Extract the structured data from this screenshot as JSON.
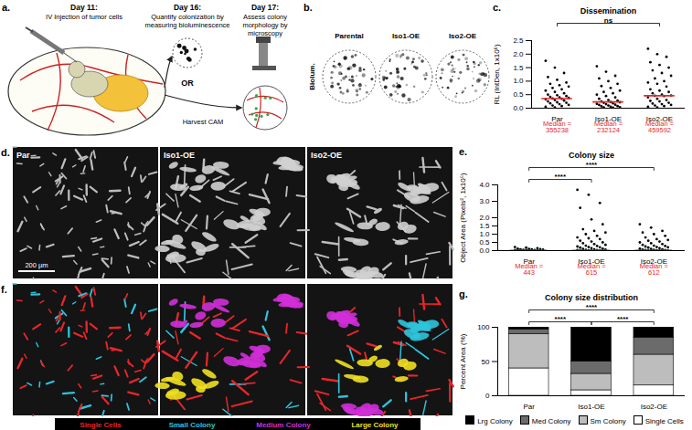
{
  "figure": {
    "a": {
      "label": "a.",
      "steps": [
        {
          "day": "Day 11:",
          "text": "IV Injection of tumor cells"
        },
        {
          "day": "Day 16:",
          "text": "Quantify colonization by measuring bioluminescence"
        },
        {
          "day": "Day 17:",
          "text": "Assess colony morphology by microscopy"
        }
      ],
      "choice": "OR",
      "arrow_label": "Harvest CAM"
    },
    "b": {
      "label": "b.",
      "row_label": "Biolum.",
      "columns": [
        "Parental",
        "Iso1-OE",
        "Iso2-OE"
      ]
    },
    "d": {
      "label": "d.",
      "columns": [
        "Par",
        "Iso1-OE",
        "Iso2-OE"
      ],
      "scale_bar": "200 µm"
    },
    "f": {
      "label": "f.",
      "legend": [
        {
          "name": "Single Cells",
          "color": "#e8262b"
        },
        {
          "name": "Small Colony",
          "color": "#2ec4dc"
        },
        {
          "name": "Medium Colony",
          "color": "#d02fd8"
        },
        {
          "name": "Large Colony",
          "color": "#f0e020"
        }
      ]
    }
  },
  "chart_data": [
    {
      "panel": "c.",
      "type": "scatter",
      "title": "Dissemination",
      "categories": [
        "Par",
        "Iso1-OE",
        "Iso2-OE"
      ],
      "y_label": "RL (IntDen, 1x10⁶)",
      "ylim": [
        0,
        2.5
      ],
      "yticks": [
        {
          "value": 0,
          "label": "0.0"
        },
        0.5,
        {
          "value": 1,
          "label": "1.0"
        },
        1.5,
        {
          "value": 2,
          "label": "2.0"
        },
        2.5
      ],
      "color": "#000000",
      "marker": "circle",
      "points": [
        [
          1.75,
          1.5,
          1.3,
          1.15,
          1.05,
          0.95,
          0.9,
          0.85,
          0.8,
          0.75,
          0.7,
          0.65,
          0.6,
          0.55,
          0.5,
          0.48,
          0.45,
          0.42,
          0.4,
          0.38,
          0.36,
          0.35,
          0.33,
          0.3,
          0.28,
          0.25,
          0.22,
          0.2,
          0.18,
          0.15,
          0.12,
          0.1,
          0.08,
          0.05,
          0.03
        ],
        [
          1.55,
          1.35,
          1.2,
          1.1,
          1.0,
          0.9,
          0.82,
          0.75,
          0.65,
          0.6,
          0.55,
          0.5,
          0.45,
          0.4,
          0.35,
          0.3,
          0.28,
          0.25,
          0.23,
          0.22,
          0.2,
          0.18,
          0.16,
          0.15,
          0.13,
          0.12,
          0.1,
          0.08,
          0.07,
          0.05,
          0.04,
          0.03,
          0.02
        ],
        [
          2.2,
          2.0,
          1.9,
          1.7,
          1.6,
          1.5,
          1.4,
          1.3,
          1.2,
          1.1,
          1.0,
          0.95,
          0.9,
          0.8,
          0.7,
          0.65,
          0.6,
          0.55,
          0.5,
          0.47,
          0.46,
          0.45,
          0.4,
          0.35,
          0.3,
          0.27,
          0.25,
          0.2,
          0.17,
          0.15,
          0.12,
          0.1,
          0.08,
          0.05,
          0.03
        ]
      ],
      "medians": [
        0.355238,
        0.232124,
        0.459592
      ],
      "median_labels": [
        "Median = 355238",
        "Median = 232124",
        "Median = 459592"
      ],
      "median_color": "#e8262b",
      "annotations": [
        {
          "from": "Par",
          "to": "Iso2-OE",
          "text": "ns"
        }
      ]
    },
    {
      "panel": "e.",
      "type": "scatter",
      "title": "Colony size",
      "categories": [
        "Par",
        "Iso1-OE",
        "Iso2-OE"
      ],
      "y_label": "Object Area (Pixels², 1x10⁵)",
      "ylim": [
        0,
        4
      ],
      "yticks": [
        {
          "value": 0,
          "label": "0.0"
        },
        0.5,
        {
          "value": 1,
          "label": "1.0"
        },
        1.5,
        {
          "value": 2,
          "label": "2.0"
        },
        {
          "value": 3,
          "label": "3.0"
        },
        {
          "value": 4,
          "label": "4.0"
        }
      ],
      "color": "#000000",
      "marker": "circle",
      "points": [
        [
          0.22,
          0.18,
          0.15,
          0.12,
          0.1,
          0.09,
          0.08,
          0.07,
          0.06,
          0.05,
          0.04,
          0.035,
          0.03,
          0.025,
          0.02,
          0.015,
          0.012,
          0.01,
          0.008,
          0.006,
          0.005,
          0.004,
          0.004,
          0.003,
          0.003,
          0.002,
          0.002,
          0.001,
          0.001
        ],
        [
          3.7,
          3.4,
          2.9,
          2.6,
          1.9,
          1.6,
          1.3,
          1.2,
          1.1,
          1.0,
          0.9,
          0.8,
          0.75,
          0.7,
          0.6,
          0.55,
          0.5,
          0.45,
          0.4,
          0.35,
          0.3,
          0.28,
          0.25,
          0.22,
          0.2,
          0.18,
          0.15,
          0.12,
          0.1,
          0.08,
          0.06,
          0.05,
          0.04,
          0.03,
          0.02,
          0.01,
          0.008,
          0.006,
          0.004,
          0.003,
          0.002,
          0.001
        ],
        [
          1.6,
          1.4,
          1.2,
          1.1,
          1.0,
          0.9,
          0.8,
          0.7,
          0.65,
          0.6,
          0.55,
          0.5,
          0.45,
          0.4,
          0.35,
          0.3,
          0.28,
          0.25,
          0.22,
          0.2,
          0.18,
          0.15,
          0.12,
          0.1,
          0.08,
          0.06,
          0.05,
          0.04,
          0.03,
          0.02,
          0.01,
          0.008,
          0.006,
          0.004,
          0.003,
          0.002,
          0.001
        ]
      ],
      "medians": [
        0.00443,
        0.00615,
        0.00612
      ],
      "median_labels": [
        "Median = 443",
        "Median = 615",
        "Median = 612"
      ],
      "median_color": "#e8262b",
      "annotations": [
        {
          "from": "Par",
          "to": "Iso1-OE",
          "text": "****"
        },
        {
          "from": "Par",
          "to": "Iso2-OE",
          "text": "****"
        }
      ]
    },
    {
      "panel": "g.",
      "type": "bar",
      "title": "Colony size distribution",
      "stacked": true,
      "legend": "bottom",
      "categories": [
        "Par",
        "Iso1-OE",
        "Iso2-OE"
      ],
      "y_label": "Percent Area (%)",
      "ylim": [
        0,
        100
      ],
      "yticks": [
        0,
        50,
        100
      ],
      "series": [
        {
          "name": "Single Cells",
          "color": "#ffffff",
          "values": [
            40,
            8,
            15
          ]
        },
        {
          "name": "Sm Colony",
          "color": "#bdbdbd",
          "values": [
            50,
            24,
            45
          ]
        },
        {
          "name": "Med Colony",
          "color": "#6b6b6b",
          "values": [
            7,
            18,
            25
          ]
        },
        {
          "name": "Lrg Colony",
          "color": "#000000",
          "values": [
            3,
            50,
            15
          ]
        }
      ],
      "annotations": [
        {
          "from": "Par",
          "to": "Iso1-OE",
          "text": "****"
        },
        {
          "from": "Iso1-OE",
          "to": "Iso2-OE",
          "text": "****"
        },
        {
          "from": "Par",
          "to": "Iso2-OE",
          "text": "****"
        }
      ]
    }
  ]
}
